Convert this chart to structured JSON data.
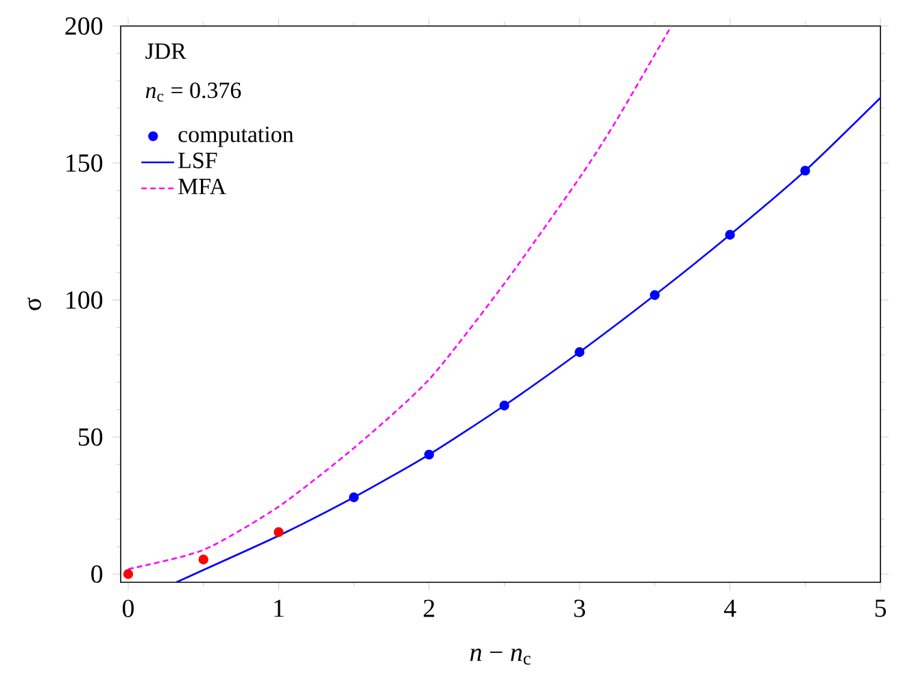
{
  "chart_data": {
    "type": "line",
    "xlabel": "*n* − *n*$_{c}$",
    "ylabel": "σ",
    "legend_title": "JDR",
    "annotations": [
      "*n*$_{c}$ = 0.376"
    ],
    "xlim": [
      -0.05,
      5
    ],
    "ylim": [
      -3,
      200
    ],
    "xticks": [
      0,
      1,
      2,
      3,
      4,
      5
    ],
    "yticks": [
      0,
      50,
      100,
      150,
      200
    ],
    "legend": "top left",
    "grid": false,
    "series": [
      {
        "name": "computation",
        "type": "scatter",
        "marker": "circle",
        "color": "#0000ff",
        "x": [
          1.5,
          2,
          2.5,
          3,
          3.5,
          4,
          4.5
        ],
        "values": [
          28,
          43.6,
          61.5,
          81,
          101.8,
          123.8,
          147.2
        ]
      },
      {
        "name": "LSF",
        "line_style": "solid",
        "color": "#0000ff",
        "x": [
          0.32,
          0.5,
          1,
          1.5,
          2,
          2.5,
          3,
          3.5,
          4,
          4.5,
          5
        ],
        "values": [
          -3,
          1.5,
          14,
          28,
          43.6,
          61.5,
          81,
          101.8,
          123.8,
          147.2,
          173.8
        ]
      },
      {
        "name": "MFA",
        "line_style": "dashed",
        "color": "#ff00ff",
        "x": [
          0,
          0.5,
          1,
          1.5,
          2,
          2.5,
          3,
          3.25,
          3.61
        ],
        "values": [
          1.8,
          8.8,
          24.6,
          46,
          71,
          106,
          144.6,
          166,
          200
        ]
      },
      {
        "type": "scatter",
        "marker": "circle",
        "color": "#ff0000",
        "x": [
          0,
          0.5,
          1
        ],
        "values": [
          0,
          5.3,
          15.3
        ]
      }
    ]
  }
}
